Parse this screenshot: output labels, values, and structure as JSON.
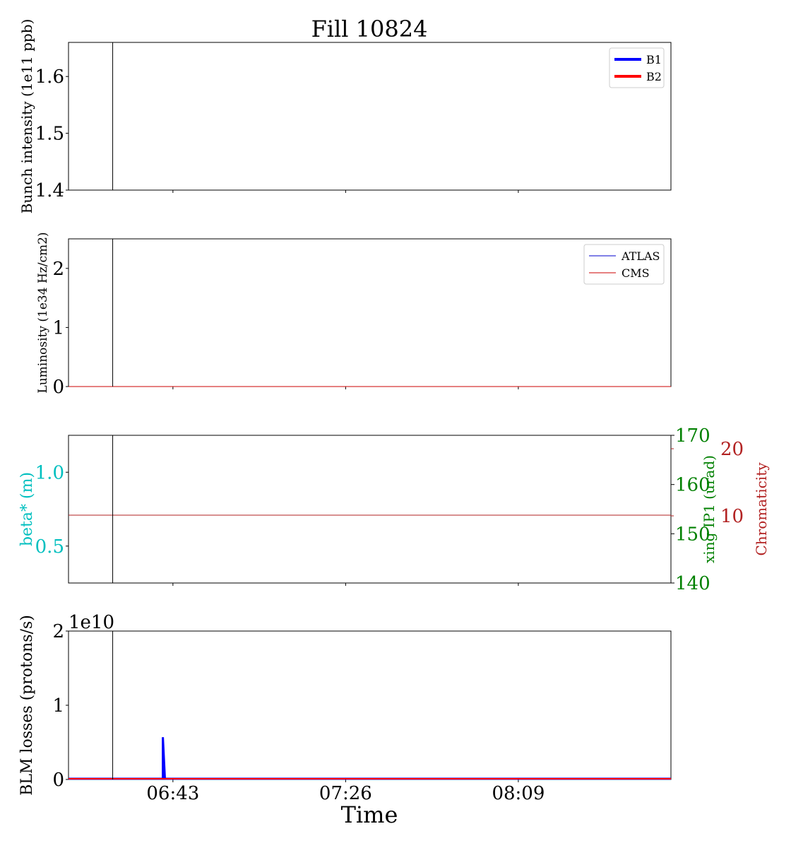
{
  "title": "Fill 10824",
  "xlabel": "Time",
  "x_ticks": [
    {
      "t": 43,
      "label": "06:43"
    },
    {
      "t": 86,
      "label": "07:26"
    },
    {
      "t": 129,
      "label": "08:09"
    }
  ],
  "x_range_minutes": [
    17,
    167
  ],
  "vline_minute": 28,
  "colors": {
    "b1": "#0000ff",
    "b2": "#ff0000",
    "atlas": "#0000cc",
    "cms": "#cc0000",
    "beta": "#00bfbf",
    "xing": "#008000",
    "chroma": "#b22222",
    "axis": "#000000"
  },
  "chart_data": [
    {
      "type": "line",
      "ylabel": "Bunch intensity (1e11 ppb)",
      "ylim": [
        1.4,
        1.66
      ],
      "yticks": [
        1.4,
        1.5,
        1.6
      ],
      "legend": "top-right",
      "series": [
        {
          "name": "B1",
          "color": "#0000ff",
          "x": [],
          "y": []
        },
        {
          "name": "B2",
          "color": "#ff0000",
          "x": [],
          "y": []
        }
      ]
    },
    {
      "type": "line",
      "ylabel": "Luminosity (1e34 Hz/cm2)",
      "ylim": [
        0,
        2.5
      ],
      "yticks": [
        0,
        1,
        2
      ],
      "legend": "top-right",
      "series": [
        {
          "name": "ATLAS",
          "color": "#0000cc",
          "x": [
            17,
            167
          ],
          "y": [
            0,
            0
          ]
        },
        {
          "name": "CMS",
          "color": "#cc0000",
          "x": [
            17,
            167
          ],
          "y": [
            0,
            0
          ]
        }
      ]
    },
    {
      "type": "line",
      "ylabel": "beta* (m)",
      "ylim": [
        0.25,
        1.25
      ],
      "yticks": [
        0.5,
        1.0
      ],
      "y2label": "xing IP1 (urad)",
      "y2lim": [
        140,
        170
      ],
      "y2ticks": [
        140,
        150,
        160,
        170
      ],
      "y3label": "Chromaticity",
      "y3lim": [
        0,
        22
      ],
      "y3ticks": [
        10,
        20
      ],
      "series": [
        {
          "name": "Chromaticity",
          "color": "#b22222",
          "axis": "y3",
          "x": [
            17,
            167
          ],
          "y": [
            10.1,
            10.1
          ]
        }
      ]
    },
    {
      "type": "line",
      "ylabel": "BLM losses (protons/s)",
      "ylim": [
        0,
        2
      ],
      "yticks": [
        0,
        1,
        2
      ],
      "offset_label": "1e10",
      "series": [
        {
          "name": "B1",
          "color": "#0000ff",
          "x": [
            17,
            40,
            40.5,
            40.5,
            41,
            167
          ],
          "y": [
            0.01,
            0.01,
            0.01,
            0.57,
            0.01,
            0.01
          ]
        },
        {
          "name": "B2",
          "color": "#ff0000",
          "x": [
            17,
            167
          ],
          "y": [
            0.01,
            0.01
          ]
        }
      ]
    }
  ]
}
